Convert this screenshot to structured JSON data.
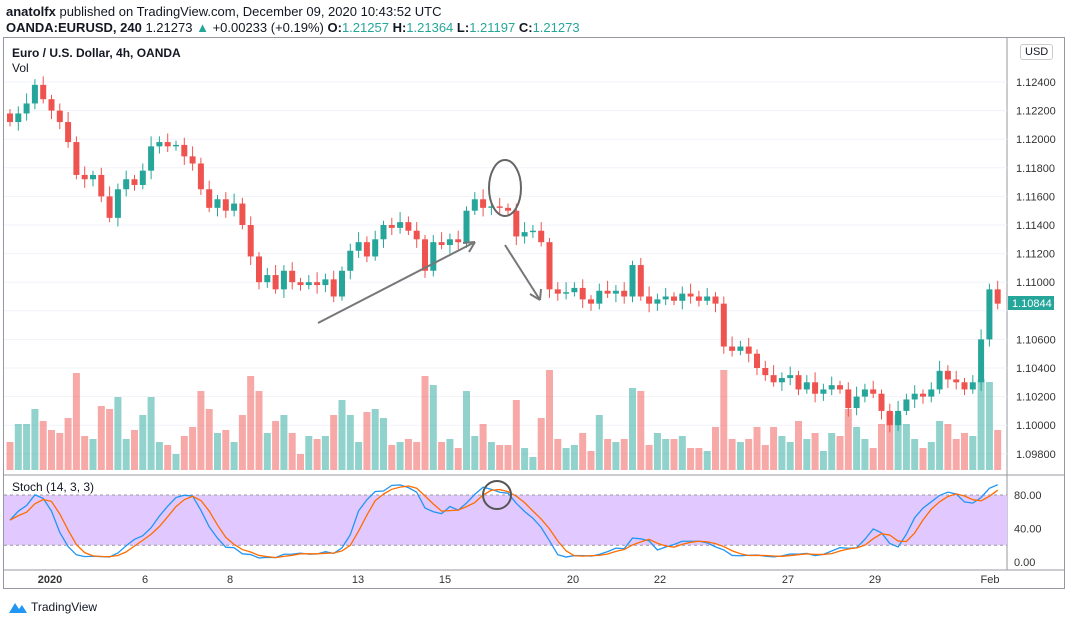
{
  "header": {
    "author": "anatolfx",
    "published": "published on TradingView.com, December 09, 2020 10:43:52 UTC",
    "symbol": "OANDA:EURUSD, 240",
    "last": "1.21273",
    "change": "+0.00233 (+0.19%)",
    "o": "1.21257",
    "h": "1.21364",
    "l": "1.21197",
    "c": "1.21273"
  },
  "chart": {
    "title": "Euro / U.S. Dollar, 4h, OANDA",
    "volume_label": "Vol",
    "currency": "USD",
    "stoch_label": "Stoch (14, 3, 3)",
    "last_price_label": "1.10844",
    "up_color": "#26a69a",
    "down_color": "#ef5350",
    "stoch_k_color": "#2196f3",
    "stoch_d_color": "#ff6d00",
    "stoch_band_color": "#e1c8ff"
  },
  "chart_data": {
    "type": "candlestick",
    "price_ticks": [
      "1.12400",
      "1.12200",
      "1.12000",
      "1.11800",
      "1.11600",
      "1.11400",
      "1.11200",
      "1.11000",
      "1.10800",
      "1.10600",
      "1.10400",
      "1.10200",
      "1.10000",
      "1.09800"
    ],
    "stoch_ticks": [
      "80.00",
      "40.00",
      "0.00"
    ],
    "date_ticks": [
      "2020",
      "6",
      "8",
      "13",
      "15",
      "20",
      "22",
      "27",
      "29",
      "Feb"
    ],
    "ylim": [
      1.0975,
      1.1255
    ],
    "close": [
      1.1212,
      1.1218,
      1.1225,
      1.1238,
      1.1228,
      1.122,
      1.1212,
      1.1198,
      1.1175,
      1.1172,
      1.1175,
      1.116,
      1.1145,
      1.1165,
      1.1172,
      1.1168,
      1.1178,
      1.1195,
      1.1198,
      1.1195,
      1.1196,
      1.1188,
      1.1183,
      1.1165,
      1.1152,
      1.1158,
      1.115,
      1.1155,
      1.114,
      1.1118,
      1.11,
      1.1105,
      1.1095,
      1.1108,
      1.11,
      1.1098,
      1.11,
      1.1098,
      1.1102,
      1.109,
      1.1108,
      1.1122,
      1.1128,
      1.1118,
      1.113,
      1.114,
      1.1138,
      1.1142,
      1.1136,
      1.113,
      1.1108,
      1.1128,
      1.1126,
      1.113,
      1.1128,
      1.115,
      1.1158,
      1.1152,
      1.1153,
      1.1152,
      1.115,
      1.1132,
      1.1135,
      1.1136,
      1.1128,
      1.1095,
      1.1092,
      1.1093,
      1.1096,
      1.1088,
      1.1085,
      1.1094,
      1.1092,
      1.1094,
      1.109,
      1.1112,
      1.109,
      1.1085,
      1.1088,
      1.109,
      1.1087,
      1.1092,
      1.109,
      1.1087,
      1.109,
      1.1085,
      1.1055,
      1.1052,
      1.1055,
      1.105,
      1.104,
      1.1035,
      1.103,
      1.1033,
      1.1035,
      1.1025,
      1.103,
      1.1022,
      1.1025,
      1.1028,
      1.1025,
      1.1012,
      1.102,
      1.1025,
      1.1022,
      1.101,
      1.1,
      1.101,
      1.1018,
      1.1022,
      1.102,
      1.1025,
      1.1038,
      1.1032,
      1.103,
      1.1025,
      1.103,
      1.106,
      1.1095,
      1.1085
    ]
  }
}
